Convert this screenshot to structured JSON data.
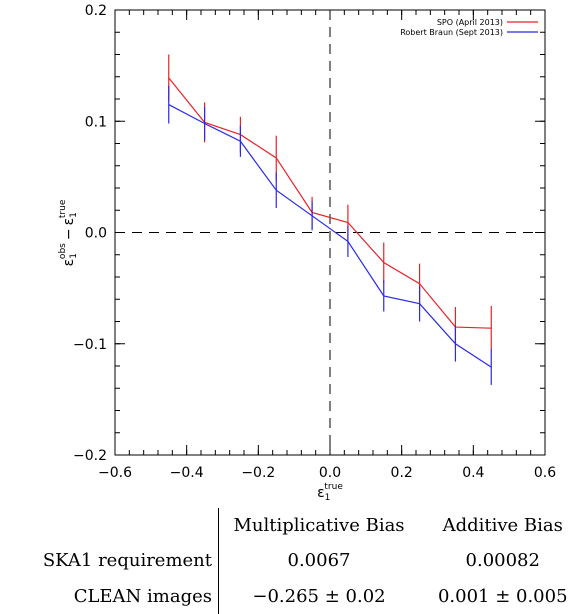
{
  "chart_data": {
    "type": "line",
    "title": "",
    "xlabel": {
      "base": "ε",
      "sub": "1",
      "sup": "true"
    },
    "ylabel": {
      "part1_base": "ε",
      "part1_sub": "1",
      "part1_sup": "obs",
      "minus": "−",
      "part2_base": "ε",
      "part2_sub": "1",
      "part2_sup": "true"
    },
    "xlim": [
      -0.6,
      0.6
    ],
    "ylim": [
      -0.2,
      0.2
    ],
    "x_ticks": [
      -0.6,
      -0.4,
      -0.2,
      0.0,
      0.2,
      0.4,
      0.6
    ],
    "x_tick_labels": [
      "−0.6",
      "−0.4",
      "−0.2",
      "0.0",
      "0.2",
      "0.4",
      "0.6"
    ],
    "y_ticks": [
      -0.2,
      -0.1,
      0.0,
      0.1,
      0.2
    ],
    "y_tick_labels": [
      "−0.2",
      "−0.1",
      "0.0",
      "0.1",
      "0.2"
    ],
    "reference_lines": {
      "x": 0.0,
      "y": 0.0,
      "style": "dashed"
    },
    "legend_position": "top-right",
    "grid": false,
    "series": [
      {
        "name": "SPO (April 2013)",
        "color": "#e8222a",
        "x": [
          -0.45,
          -0.35,
          -0.25,
          -0.15,
          -0.05,
          0.05,
          0.15,
          0.25,
          0.35,
          0.45
        ],
        "y": [
          0.139,
          0.099,
          0.088,
          0.067,
          0.018,
          0.009,
          -0.027,
          -0.046,
          -0.085,
          -0.086
        ],
        "err": [
          0.021,
          0.018,
          0.016,
          0.02,
          0.014,
          0.016,
          0.018,
          0.018,
          0.018,
          0.02
        ]
      },
      {
        "name": "Robert Braun (Sept 2013)",
        "color": "#2a2ae8",
        "x": [
          -0.45,
          -0.35,
          -0.25,
          -0.15,
          -0.05,
          0.05,
          0.15,
          0.25,
          0.35,
          0.45
        ],
        "y": [
          0.115,
          0.098,
          0.082,
          0.038,
          0.015,
          -0.008,
          -0.057,
          -0.064,
          -0.1,
          -0.121
        ],
        "err": [
          0.017,
          0.015,
          0.014,
          0.016,
          0.013,
          0.014,
          0.014,
          0.016,
          0.016,
          0.016
        ]
      }
    ]
  },
  "table": {
    "header": {
      "blank": "",
      "col1": "Multiplicative Bias",
      "col2": "Additive Bias"
    },
    "rows": [
      {
        "label": "SKA1 requirement",
        "col1": "0.0067",
        "col2": "0.00082"
      },
      {
        "label": "CLEAN images",
        "col1": "−0.265 ± 0.02",
        "col2": "0.001 ± 0.005"
      }
    ]
  }
}
